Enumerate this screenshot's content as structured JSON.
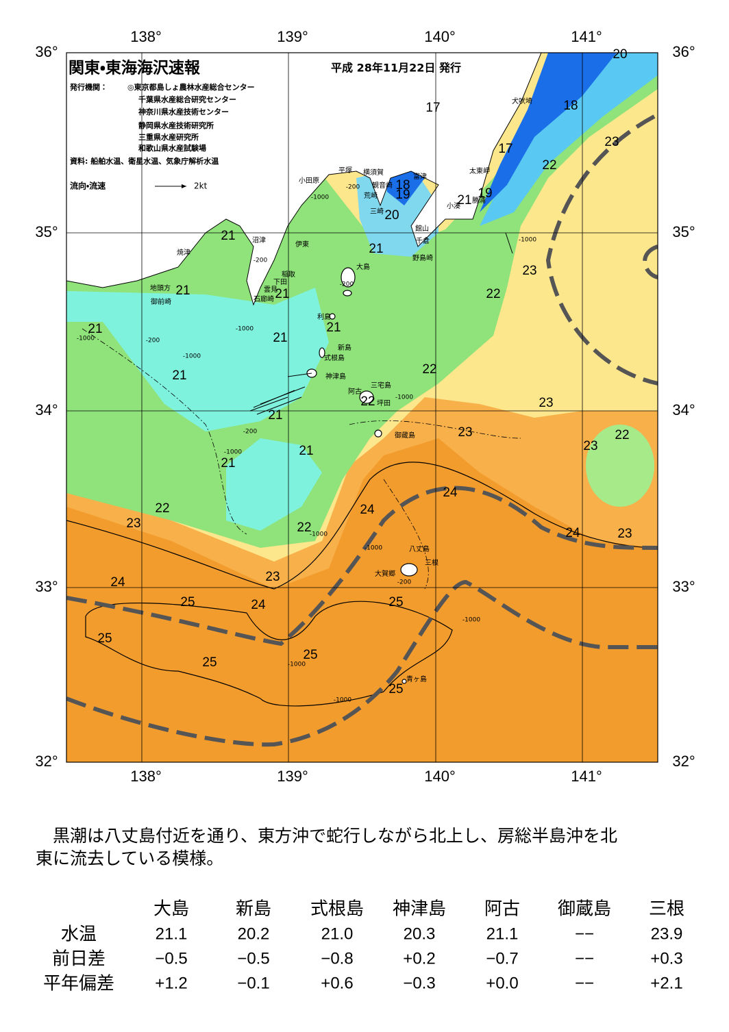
{
  "header": {
    "title": "関東・東海海沢速報",
    "date": "平成 28年11月22日 発行",
    "issuer_label": "発行機関：",
    "issuers": [
      "◎東京都島しょ農林水産総合センター",
      "千葉県水産総合研究センター",
      "神奈川県水産技術センター",
      "静岡県水産技術研究所",
      "三重県水産研究所",
      "和歌山県水産試験場"
    ],
    "source": "資料: 船舶水温、衛星水温、気象庁解析水温"
  },
  "legend": {
    "label": "流向・流速",
    "scale": "2kt"
  },
  "map": {
    "lon_labels": [
      "138°",
      "139°",
      "140°",
      "141°"
    ],
    "lat_labels": [
      "36°",
      "35°",
      "34°",
      "33°",
      "32°"
    ],
    "places": [
      "犬吠埼",
      "太東岬",
      "富津",
      "横須賀",
      "平塚",
      "観音崎",
      "小田原",
      "荒崎",
      "勝浦",
      "小湊",
      "三崎",
      "館山",
      "千倉",
      "沼津",
      "伊東",
      "野島崎",
      "焼津",
      "大島",
      "稲取",
      "下田",
      "地頭方",
      "雲見",
      "御前崎",
      "石廊崎",
      "利島",
      "新島",
      "式根島",
      "神津島",
      "三宅島",
      "阿古",
      "坪田",
      "御蔵島",
      "八丈島",
      "三根",
      "大賀郷",
      "青ヶ島"
    ],
    "isotherms": [
      "20",
      "18",
      "17",
      "23",
      "17",
      "22",
      "18",
      "19",
      "19",
      "21",
      "20",
      "21",
      "21",
      "23",
      "21",
      "21",
      "22",
      "21",
      "21",
      "21",
      "22",
      "21",
      "22",
      "23",
      "21",
      "23",
      "22",
      "23",
      "21",
      "21",
      "24",
      "22",
      "24",
      "23",
      "22",
      "24",
      "23",
      "23",
      "24",
      "25",
      "24",
      "25",
      "25",
      "25",
      "25",
      "25"
    ],
    "depths": [
      "-200",
      "-1000",
      "-200",
      "-1000",
      "-200",
      "-1000",
      "-1000",
      "-200",
      "-1000",
      "-1000",
      "-200",
      "-1000",
      "-1000",
      "-200",
      "-1000",
      "-1000",
      "-1000",
      "-1000"
    ]
  },
  "text": [
    "　黒潮は八丈島付近を通り、東方沖で蛇行しながら北上し、房総半島沖を北",
    "東に流去している模様。"
  ],
  "table": {
    "columns": [
      "大島",
      "新島",
      "式根島",
      "神津島",
      "阿古",
      "御蔵島",
      "三根"
    ],
    "rows": [
      {
        "label": "水温",
        "cells": [
          "21.1",
          "20.2",
          "21.0",
          "20.3",
          "21.1",
          "−−",
          "23.9"
        ]
      },
      {
        "label": "前日差",
        "cells": [
          "−0.5",
          "−0.5",
          "−0.8",
          "+0.2",
          "−0.7",
          "−−",
          "+0.3"
        ]
      },
      {
        "label": "平年偏差",
        "cells": [
          "+1.2",
          "−0.1",
          "+0.6",
          "−0.3",
          "+0.0",
          "−−",
          "+2.1"
        ]
      }
    ]
  }
}
